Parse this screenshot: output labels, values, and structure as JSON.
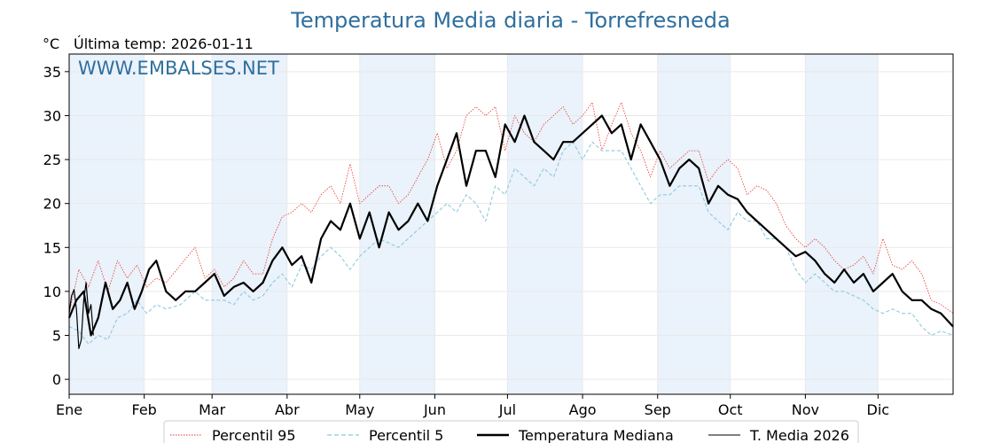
{
  "title": "Temperatura Media diaria - Torrefresneda",
  "unit": "°C",
  "last_temp_label": "Última temp: 2026-01-11",
  "watermark": "WWW.EMBALSES.NET",
  "colors": {
    "title": "#2e6f9e",
    "p95": "#e8372c",
    "p5": "#8ec9de",
    "median": "#000000",
    "year": "#000000",
    "band": "#eaf2fb",
    "grid": "#e9e9e9"
  },
  "chart_data": {
    "type": "line",
    "title": "Temperatura Media diaria - Torrefresneda",
    "ylabel": "°C",
    "xlabel": "",
    "ylim": [
      -1.7,
      37
    ],
    "xlim": [
      0,
      365
    ],
    "yticks": [
      0,
      5,
      10,
      15,
      20,
      25,
      30,
      35
    ],
    "months": [
      {
        "label": "Ene",
        "day": 0
      },
      {
        "label": "Feb",
        "day": 31
      },
      {
        "label": "Mar",
        "day": 59
      },
      {
        "label": "Abr",
        "day": 90
      },
      {
        "label": "May",
        "day": 120
      },
      {
        "label": "Jun",
        "day": 151
      },
      {
        "label": "Jul",
        "day": 181
      },
      {
        "label": "Ago",
        "day": 212
      },
      {
        "label": "Sep",
        "day": 243
      },
      {
        "label": "Oct",
        "day": 273
      },
      {
        "label": "Nov",
        "day": 304
      },
      {
        "label": "Dic",
        "day": 334
      }
    ],
    "shaded_months": [
      [
        0,
        31
      ],
      [
        59,
        90
      ],
      [
        120,
        151
      ],
      [
        181,
        212
      ],
      [
        243,
        273
      ],
      [
        304,
        334
      ]
    ],
    "grid": true,
    "legend_position": "bottom",
    "series": [
      {
        "name": "Percentil 95",
        "style": "dotted-red",
        "x": [
          0,
          4,
          8,
          12,
          16,
          20,
          24,
          28,
          32,
          36,
          40,
          46,
          52,
          56,
          60,
          64,
          68,
          72,
          76,
          80,
          84,
          88,
          92,
          96,
          100,
          104,
          108,
          112,
          116,
          120,
          124,
          128,
          132,
          136,
          140,
          144,
          148,
          152,
          156,
          160,
          164,
          168,
          172,
          176,
          180,
          184,
          188,
          192,
          196,
          200,
          204,
          208,
          212,
          216,
          220,
          224,
          228,
          232,
          236,
          240,
          244,
          248,
          252,
          256,
          260,
          264,
          268,
          272,
          276,
          280,
          284,
          288,
          292,
          296,
          300,
          304,
          308,
          312,
          316,
          320,
          324,
          328,
          332,
          336,
          340,
          344,
          348,
          352,
          356,
          360,
          365
        ],
        "values": [
          7.5,
          12.5,
          10.5,
          13.5,
          10,
          13.5,
          11.5,
          13,
          10.5,
          11.5,
          11,
          13,
          15,
          11.5,
          12.5,
          10.5,
          11.5,
          13.5,
          12,
          12,
          16,
          18.5,
          19,
          20,
          19,
          21,
          22,
          20,
          24.5,
          20,
          21,
          22,
          22,
          20,
          21,
          23,
          25,
          28,
          24,
          26,
          30,
          31,
          30,
          31,
          26,
          30,
          28,
          27,
          29,
          30,
          31,
          29,
          30,
          31.5,
          26,
          29,
          31.5,
          28,
          26,
          23,
          26,
          24,
          25,
          26,
          26,
          22.5,
          24,
          25,
          24,
          21,
          22,
          21.5,
          20,
          17.5,
          16,
          15,
          16,
          15,
          13.5,
          12.5,
          13,
          14,
          12,
          16,
          13,
          12.5,
          13.5,
          12,
          9,
          8.5,
          7.5
        ]
      },
      {
        "name": "Percentil 5",
        "style": "dashed-lightblue",
        "x": [
          0,
          4,
          8,
          12,
          16,
          20,
          24,
          28,
          32,
          36,
          40,
          46,
          52,
          56,
          60,
          64,
          68,
          72,
          76,
          80,
          84,
          88,
          92,
          96,
          100,
          104,
          108,
          112,
          116,
          120,
          124,
          128,
          132,
          136,
          140,
          144,
          148,
          152,
          156,
          160,
          164,
          168,
          172,
          176,
          180,
          184,
          188,
          192,
          196,
          200,
          204,
          208,
          212,
          216,
          220,
          224,
          228,
          232,
          236,
          240,
          244,
          248,
          252,
          256,
          260,
          264,
          268,
          272,
          276,
          280,
          284,
          288,
          292,
          296,
          300,
          304,
          308,
          312,
          316,
          320,
          324,
          328,
          332,
          336,
          340,
          344,
          348,
          352,
          356,
          360,
          365
        ],
        "values": [
          6,
          5.5,
          4,
          5,
          4.5,
          7,
          7.5,
          9,
          7.5,
          8.5,
          8,
          8.5,
          10,
          9,
          9,
          9,
          8.5,
          10,
          9,
          9.5,
          11,
          12,
          10.5,
          13,
          12.5,
          14,
          15,
          14,
          12.5,
          14,
          15,
          16,
          15.5,
          15,
          16,
          17,
          18,
          19,
          20,
          19,
          21,
          20,
          18,
          22,
          21,
          24,
          23,
          22,
          24,
          23,
          26,
          27,
          25,
          27,
          26,
          26,
          26,
          24,
          22,
          20,
          21,
          21,
          22,
          22,
          22,
          19,
          18,
          17,
          19,
          18,
          18,
          16,
          16,
          15,
          12.5,
          11,
          12,
          11,
          10,
          10,
          9.5,
          9,
          8,
          7.5,
          8,
          7.5,
          7.5,
          6,
          5,
          5.5,
          5
        ]
      },
      {
        "name": "Temperatura Mediana",
        "style": "solid-black-thick",
        "x": [
          0,
          3,
          6,
          9,
          12,
          15,
          18,
          21,
          24,
          27,
          30,
          33,
          36,
          40,
          44,
          48,
          52,
          56,
          60,
          64,
          68,
          72,
          76,
          80,
          84,
          88,
          92,
          96,
          100,
          104,
          108,
          112,
          116,
          120,
          124,
          128,
          132,
          136,
          140,
          144,
          148,
          152,
          156,
          160,
          164,
          168,
          172,
          176,
          180,
          184,
          188,
          192,
          196,
          200,
          204,
          208,
          212,
          216,
          220,
          224,
          228,
          232,
          236,
          240,
          244,
          248,
          252,
          256,
          260,
          264,
          268,
          272,
          276,
          280,
          284,
          288,
          292,
          296,
          300,
          304,
          308,
          312,
          316,
          320,
          324,
          328,
          332,
          336,
          340,
          344,
          348,
          352,
          356,
          360,
          365
        ],
        "values": [
          7,
          9,
          10,
          5,
          7,
          11,
          8,
          9,
          11,
          8,
          10,
          12.5,
          13.5,
          10,
          9,
          10,
          10,
          11,
          12,
          9.5,
          10.5,
          11,
          10,
          11,
          13.5,
          15,
          13,
          14,
          11,
          16,
          18,
          17,
          20,
          16,
          19,
          15,
          19,
          17,
          18,
          20,
          18,
          22,
          25,
          28,
          22,
          26,
          26,
          23,
          29,
          27,
          30,
          27,
          26,
          25,
          27,
          27,
          28,
          29,
          30,
          28,
          29,
          25,
          29,
          27,
          25,
          22,
          24,
          25,
          24,
          20,
          22,
          21,
          20.5,
          19,
          18,
          17,
          16,
          15,
          14,
          14.5,
          13.5,
          12,
          11,
          12.5,
          11,
          12,
          10,
          11,
          12,
          10,
          9,
          9,
          8,
          7.5,
          6
        ]
      },
      {
        "name": "T. Media 2026",
        "style": "solid-black-thin",
        "x": [
          0,
          1,
          2,
          3,
          4,
          5,
          6,
          7,
          8,
          9,
          10
        ],
        "values": [
          7.5,
          9.5,
          10.2,
          8,
          3.5,
          4.5,
          9,
          11,
          7.5,
          8.5,
          5
        ]
      }
    ]
  }
}
